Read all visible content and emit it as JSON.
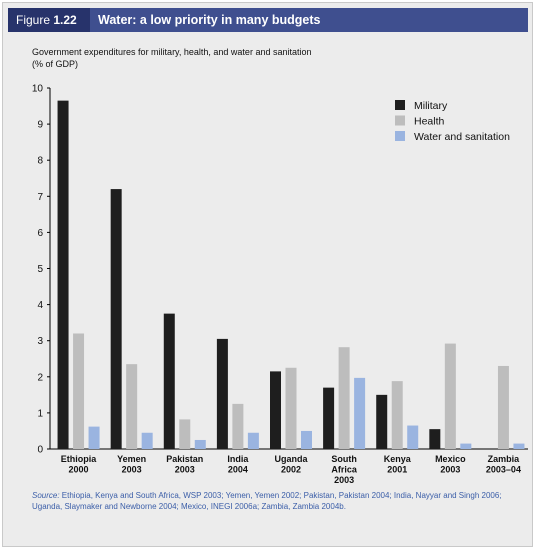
{
  "header": {
    "figure_label": "Figure",
    "figure_number": "1.22",
    "title": "Water: a low priority in many budgets"
  },
  "subtitle_line1": "Government expenditures for military, health, and water and sanitation",
  "subtitle_line2": "(% of GDP)",
  "source": {
    "label": "Source:",
    "text": " Ethiopia, Kenya and South Africa, WSP 2003; Yemen, Yemen 2002; Pakistan, Pakistan 2004; India, Nayyar and Singh 2006; Uganda, Slaymaker and Newborne 2004; Mexico, INEGI 2006a; Zambia, Zambia 2004b."
  },
  "colors": {
    "military": "#1e1e1e",
    "health": "#bdbdbd",
    "water": "#9ab4e0",
    "header_bg": "#3f4f8f",
    "header_tag_bg": "#27336b",
    "source_text": "#3b5ea8"
  },
  "chart_data": {
    "type": "bar",
    "categories": [
      [
        "Ethiopia",
        "2000"
      ],
      [
        "Yemen",
        "2003"
      ],
      [
        "Pakistan",
        "2003"
      ],
      [
        "India",
        "2004"
      ],
      [
        "Uganda",
        "2002"
      ],
      [
        "South",
        "Africa",
        "2003"
      ],
      [
        "Kenya",
        "2001"
      ],
      [
        "Mexico",
        "2003"
      ],
      [
        "Zambia",
        "2003–04"
      ]
    ],
    "series": [
      {
        "name": "Military",
        "values": [
          9.65,
          7.2,
          3.75,
          3.05,
          2.15,
          1.7,
          1.5,
          0.55,
          0
        ]
      },
      {
        "name": "Health",
        "values": [
          3.2,
          2.35,
          0.82,
          1.25,
          2.25,
          2.82,
          1.88,
          2.92,
          2.3
        ]
      },
      {
        "name": "Water and sanitation",
        "values": [
          0.62,
          0.45,
          0.25,
          0.45,
          0.5,
          1.97,
          0.65,
          0.15,
          0.15
        ]
      }
    ],
    "ylim": [
      0,
      10
    ],
    "yticks": [
      0,
      1,
      2,
      3,
      4,
      5,
      6,
      7,
      8,
      9,
      10
    ],
    "grid": false,
    "legend": "top-right"
  }
}
